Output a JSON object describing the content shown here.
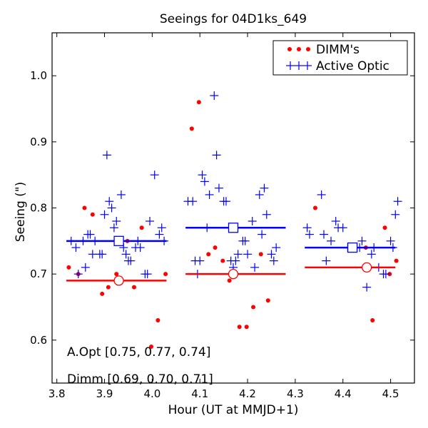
{
  "chart_data": {
    "type": "scatter",
    "title": "Seeings for 04D1ks_649",
    "xlabel": "Hour (UT at MMJD+1)",
    "ylabel": "Seeing (\")",
    "xlim": [
      3.79,
      4.55
    ],
    "ylim": [
      0.535,
      1.065
    ],
    "xticks": [
      3.8,
      3.9,
      4.0,
      4.1,
      4.2,
      4.3,
      4.4,
      4.5
    ],
    "xtick_labels": [
      "3.8",
      "3.9",
      "4.0",
      "4.1",
      "4.2",
      "4.3",
      "4.4",
      "4.5"
    ],
    "yticks": [
      0.6,
      0.7,
      0.8,
      0.9,
      1.0
    ],
    "ytick_labels": [
      "0.6",
      "0.7",
      "0.8",
      "0.9",
      "1.0"
    ],
    "legend": {
      "placement": "top-right",
      "entries": [
        {
          "label": "DIMM's",
          "marker": "dot",
          "color": "#ff0000"
        },
        {
          "label": "Active Optic",
          "marker": "plus",
          "color": "#0000ff"
        }
      ]
    },
    "colors": {
      "active_optic": "#0000ff",
      "dimm": "#ff0000"
    },
    "series": [
      {
        "name": "DIMM's",
        "marker": "dot",
        "color": "#ff0000",
        "points": [
          [
            3.825,
            0.71
          ],
          [
            3.845,
            0.7
          ],
          [
            3.858,
            0.8
          ],
          [
            3.875,
            0.79
          ],
          [
            3.895,
            0.67
          ],
          [
            3.908,
            0.68
          ],
          [
            3.925,
            0.7
          ],
          [
            3.948,
            0.75
          ],
          [
            3.962,
            0.68
          ],
          [
            3.978,
            0.77
          ],
          [
            3.998,
            0.59
          ],
          [
            4.012,
            0.63
          ],
          [
            4.028,
            0.7
          ],
          [
            4.083,
            0.92
          ],
          [
            4.098,
            0.96
          ],
          [
            4.118,
            0.73
          ],
          [
            4.132,
            0.74
          ],
          [
            4.148,
            0.72
          ],
          [
            4.162,
            0.69
          ],
          [
            4.183,
            0.62
          ],
          [
            4.198,
            0.62
          ],
          [
            4.212,
            0.65
          ],
          [
            4.228,
            0.73
          ],
          [
            4.243,
            0.66
          ],
          [
            4.342,
            0.8
          ],
          [
            4.448,
            0.74
          ],
          [
            4.462,
            0.63
          ],
          [
            4.488,
            0.77
          ],
          [
            4.498,
            0.7
          ],
          [
            4.512,
            0.72
          ]
        ]
      },
      {
        "name": "Active Optic",
        "marker": "plus",
        "color": "#0000ff",
        "points": [
          [
            3.83,
            0.75
          ],
          [
            3.84,
            0.74
          ],
          [
            3.845,
            0.7
          ],
          [
            3.855,
            0.75
          ],
          [
            3.86,
            0.71
          ],
          [
            3.865,
            0.76
          ],
          [
            3.87,
            0.76
          ],
          [
            3.875,
            0.73
          ],
          [
            3.88,
            0.75
          ],
          [
            3.89,
            0.73
          ],
          [
            3.895,
            0.73
          ],
          [
            3.9,
            0.79
          ],
          [
            3.905,
            0.88
          ],
          [
            3.91,
            0.81
          ],
          [
            3.915,
            0.8
          ],
          [
            3.92,
            0.77
          ],
          [
            3.925,
            0.78
          ],
          [
            3.935,
            0.82
          ],
          [
            3.94,
            0.74
          ],
          [
            3.945,
            0.73
          ],
          [
            3.95,
            0.72
          ],
          [
            3.955,
            0.72
          ],
          [
            3.965,
            0.74
          ],
          [
            3.97,
            0.75
          ],
          [
            3.975,
            0.74
          ],
          [
            3.985,
            0.7
          ],
          [
            3.99,
            0.7
          ],
          [
            3.995,
            0.78
          ],
          [
            4.005,
            0.85
          ],
          [
            4.015,
            0.76
          ],
          [
            4.02,
            0.77
          ],
          [
            4.025,
            0.75
          ],
          [
            4.075,
            0.81
          ],
          [
            4.085,
            0.81
          ],
          [
            4.09,
            0.72
          ],
          [
            4.095,
            0.7
          ],
          [
            4.1,
            0.72
          ],
          [
            4.105,
            0.85
          ],
          [
            4.11,
            0.84
          ],
          [
            4.115,
            0.77
          ],
          [
            4.12,
            0.82
          ],
          [
            4.13,
            0.97
          ],
          [
            4.135,
            0.88
          ],
          [
            4.14,
            0.83
          ],
          [
            4.15,
            0.81
          ],
          [
            4.155,
            0.81
          ],
          [
            4.165,
            0.72
          ],
          [
            4.17,
            0.71
          ],
          [
            4.175,
            0.72
          ],
          [
            4.18,
            0.73
          ],
          [
            4.19,
            0.75
          ],
          [
            4.195,
            0.75
          ],
          [
            4.2,
            0.73
          ],
          [
            4.21,
            0.78
          ],
          [
            4.215,
            0.71
          ],
          [
            4.225,
            0.82
          ],
          [
            4.23,
            0.76
          ],
          [
            4.235,
            0.83
          ],
          [
            4.24,
            0.79
          ],
          [
            4.25,
            0.73
          ],
          [
            4.255,
            0.72
          ],
          [
            4.26,
            0.74
          ],
          [
            4.325,
            0.77
          ],
          [
            4.33,
            0.76
          ],
          [
            4.355,
            0.82
          ],
          [
            4.36,
            0.76
          ],
          [
            4.365,
            0.72
          ],
          [
            4.375,
            0.75
          ],
          [
            4.385,
            0.78
          ],
          [
            4.39,
            0.77
          ],
          [
            4.4,
            0.77
          ],
          [
            4.41,
            0.74
          ],
          [
            4.42,
            0.74
          ],
          [
            4.435,
            0.74
          ],
          [
            4.44,
            0.75
          ],
          [
            4.45,
            0.68
          ],
          [
            4.46,
            0.73
          ],
          [
            4.465,
            0.74
          ],
          [
            4.475,
            0.71
          ],
          [
            4.485,
            0.7
          ],
          [
            4.49,
            0.7
          ],
          [
            4.5,
            0.75
          ],
          [
            4.505,
            0.74
          ],
          [
            4.51,
            0.79
          ],
          [
            4.515,
            0.81
          ]
        ]
      }
    ],
    "medians": {
      "active_optic": {
        "label": "A.Opt [0.75, 0.77, 0.74]",
        "segments": [
          {
            "x_start": 3.82,
            "x_end": 4.03,
            "value": 0.75,
            "marker_x": 3.93
          },
          {
            "x_start": 4.07,
            "x_end": 4.28,
            "value": 0.77,
            "marker_x": 4.17
          },
          {
            "x_start": 4.32,
            "x_end": 4.51,
            "value": 0.74,
            "marker_x": 4.42
          }
        ]
      },
      "dimm": {
        "label": "Dimm [0.69, 0.70, 0.71]",
        "segments": [
          {
            "x_start": 3.82,
            "x_end": 4.03,
            "value": 0.69,
            "marker_x": 3.93
          },
          {
            "x_start": 4.07,
            "x_end": 4.28,
            "value": 0.7,
            "marker_x": 4.17
          },
          {
            "x_start": 4.32,
            "x_end": 4.51,
            "value": 0.71,
            "marker_x": 4.45
          }
        ]
      }
    }
  }
}
